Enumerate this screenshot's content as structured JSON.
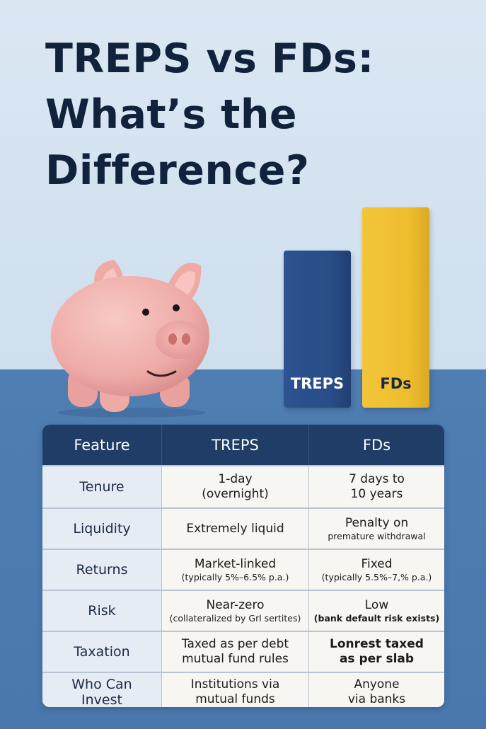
{
  "title": {
    "line1": "TREPS vs FDs:",
    "line2": "What’s the",
    "line3": "Difference?"
  },
  "bars": {
    "treps_label": "TREPS",
    "fds_label": "FDs",
    "treps_color": "#284d87",
    "fds_color": "#eebd2d"
  },
  "table": {
    "headers": [
      "Feature",
      "TREPS",
      "FDs"
    ],
    "rows": [
      {
        "feature": "Tenure",
        "treps": {
          "main": "1-day",
          "sub": "(overnight)"
        },
        "fds": {
          "main": "7 days to",
          "sub": "10 years"
        }
      },
      {
        "feature": "Liquidity",
        "treps": {
          "main": "Extremely liquid",
          "sub": ""
        },
        "fds": {
          "main": "Penalty on",
          "sub": "premature withdrawal"
        }
      },
      {
        "feature": "Returns",
        "treps": {
          "main": "Market-linked",
          "sub": "(typically 5%–6.5% p.a.)"
        },
        "fds": {
          "main": "Fixed",
          "sub": "(typically 5.5%–7,% p.a.)"
        }
      },
      {
        "feature": "Risk",
        "treps": {
          "main": "Near-zero",
          "sub": "(collateralized by Grl sertites)"
        },
        "fds": {
          "main": "Low",
          "sub": "(bank default risk exists)"
        }
      },
      {
        "feature": "Taxation",
        "treps": {
          "main": "Taxed as per debt",
          "sub": "mutual fund rules"
        },
        "fds": {
          "main": "Lonrest taxed",
          "sub": "as per slab"
        }
      },
      {
        "feature": "Who Can Invest",
        "treps": {
          "main": "Institutions via",
          "sub": "mutual funds"
        },
        "fds": {
          "main": "Anyone",
          "sub": "via banks"
        }
      }
    ]
  },
  "colors": {
    "header_bg": "#1f3d66",
    "title": "#11233c",
    "floor": "#4f7eb3"
  }
}
